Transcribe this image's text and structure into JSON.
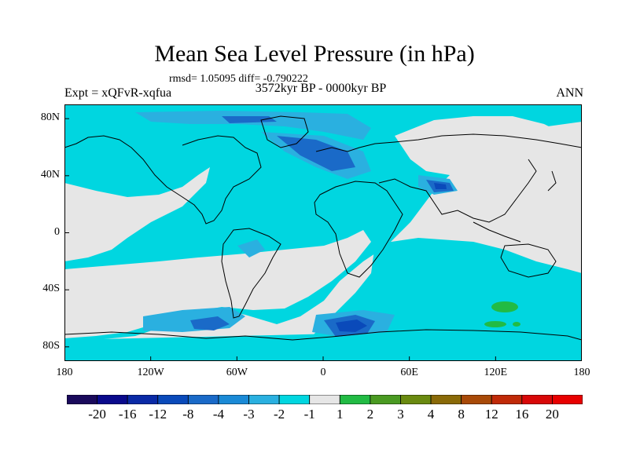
{
  "header": {
    "title": "Mean Sea Level Pressure (in hPa)",
    "stats": "rmsd= 1.05095 diff= -0.790222",
    "expt": "Expt = xQFvR-xqfua",
    "period": "3572kyr BP - 0000kyr BP",
    "season": "ANN"
  },
  "axes": {
    "y_labels": [
      "80N",
      "40N",
      "0",
      "40S",
      "80S"
    ],
    "y_values": [
      80,
      40,
      0,
      -40,
      -80
    ],
    "x_labels": [
      "180",
      "120W",
      "60W",
      "0",
      "60E",
      "120E",
      "180"
    ],
    "x_values": [
      -180,
      -120,
      -60,
      0,
      60,
      120,
      180
    ],
    "lon_range": [
      -180,
      180
    ],
    "lat_range": [
      -90,
      90
    ]
  },
  "colorbar": {
    "labels": [
      "-20",
      "-16",
      "-12",
      "-8",
      "-4",
      "-3",
      "-2",
      "-1",
      "1",
      "2",
      "3",
      "4",
      "8",
      "12",
      "16",
      "20"
    ],
    "colors": [
      "#1a0a5c",
      "#0a0a8c",
      "#0a2aa6",
      "#0a4aba",
      "#1a6ac8",
      "#1a8ad6",
      "#2ab0e0",
      "#00d6e0",
      "#e6e6e6",
      "#22bb44",
      "#4a9a22",
      "#6a8a10",
      "#8a6a08",
      "#a84a08",
      "#c02a08",
      "#d80808",
      "#e80000"
    ]
  },
  "field_colors": {
    "neutral": "#e6e6e6",
    "weak_negative": "#00d6e0",
    "moderate_negative": "#2ab0e0",
    "strong_negative": "#1a6ac8",
    "very_strong_negative": "#0a4aba",
    "weak_positive": "#22bb44"
  }
}
